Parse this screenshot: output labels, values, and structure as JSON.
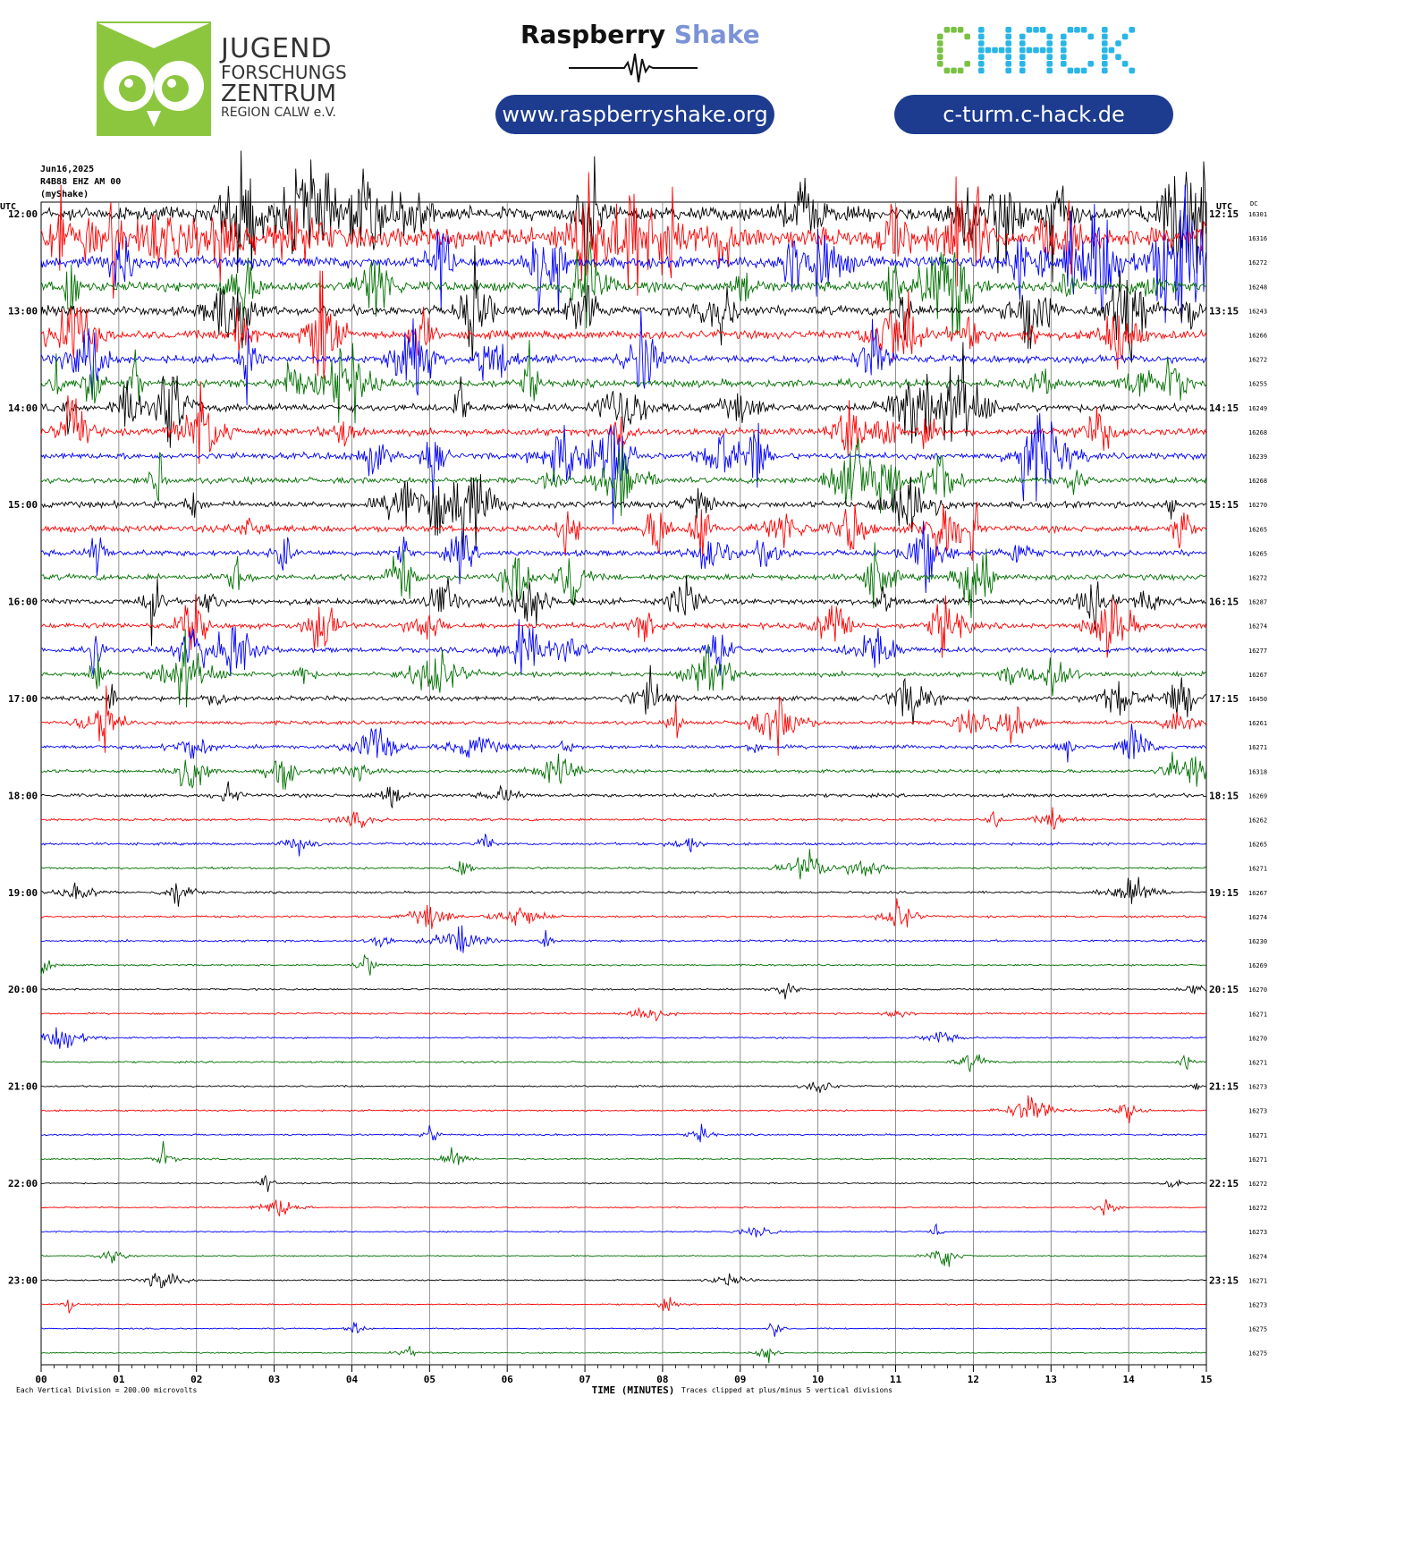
{
  "branding": {
    "org_lines": [
      "JUGEND",
      "FORSCHUNGS",
      "ZENTRUM",
      "REGION CALW e.V."
    ],
    "rs_word1": "Raspberry",
    "rs_word2": "Shake",
    "rs_url": "www.raspberryshake.org",
    "chack_logo": "CHACK",
    "chack_url": "c-turm.c-hack.de",
    "colors": {
      "owl_green": "#8cc63f",
      "rs_blue": "#7b93d6",
      "chack_green": "#7ac143",
      "chack_cyan": "#29b6e6",
      "pill": "#1d3b8f"
    }
  },
  "meta": {
    "date": "Jun16,2025",
    "station": "R4B88 EHZ AM 00",
    "network": "(myShake)"
  },
  "chart_data": {
    "type": "line",
    "subtype": "helicorder",
    "left_axis_label": "UTC",
    "right_axis_label": "UTC",
    "dc_header": "DC",
    "left_hour_labels": [
      "12:00",
      "13:00",
      "14:00",
      "15:00",
      "16:00",
      "17:00",
      "18:00",
      "19:00",
      "20:00",
      "21:00",
      "22:00",
      "23:00"
    ],
    "right_hour_labels": [
      "12:15",
      "13:15",
      "14:15",
      "15:15",
      "16:15",
      "17:15",
      "18:15",
      "19:15",
      "20:15",
      "21:15",
      "22:15",
      "23:15"
    ],
    "dc_offsets": [
      16301,
      16316,
      16272,
      16248,
      16243,
      16266,
      16272,
      16255,
      16249,
      16268,
      16239,
      16268,
      16270,
      16265,
      16265,
      16272,
      16287,
      16274,
      16277,
      16267,
      16450,
      16261,
      16271,
      16318,
      16269,
      16262,
      16265,
      16271,
      16267,
      16274,
      16230,
      16269,
      16270,
      16271,
      16270,
      16271,
      16273,
      16273,
      16271,
      16271,
      16272,
      16272,
      16273,
      16274,
      16271,
      16273,
      16275,
      16275
    ],
    "trace_colors": [
      "#000000",
      "#ff0000",
      "#0000ff",
      "#007000"
    ],
    "x_ticks": [
      "00",
      "01",
      "02",
      "03",
      "04",
      "05",
      "06",
      "07",
      "08",
      "09",
      "10",
      "11",
      "12",
      "13",
      "14",
      "15"
    ],
    "xlim": [
      0,
      15
    ],
    "xlabel": "TIME (MINUTES)",
    "scale_note": "Each Vertical Division =  200.00 microvolts",
    "clip_note": "Traces clipped at plus/minus 5 vertical divisions",
    "grid": true,
    "trace_count": 48,
    "minutes_per_trace": 15,
    "activity_levels": [
      3.2,
      4.5,
      2.6,
      2.3,
      2.2,
      2.0,
      1.8,
      1.8,
      1.8,
      1.6,
      1.5,
      1.4,
      1.5,
      1.5,
      1.4,
      1.4,
      1.4,
      1.3,
      1.2,
      1.1,
      1.1,
      0.9,
      0.9,
      0.8,
      0.8,
      0.6,
      0.6,
      0.5,
      0.5,
      0.5,
      0.5,
      0.4,
      0.4,
      0.4,
      0.4,
      0.4,
      0.4,
      0.4,
      0.4,
      0.4,
      0.3,
      0.3,
      0.3,
      0.3,
      0.3,
      0.3,
      0.3,
      0.3
    ]
  }
}
